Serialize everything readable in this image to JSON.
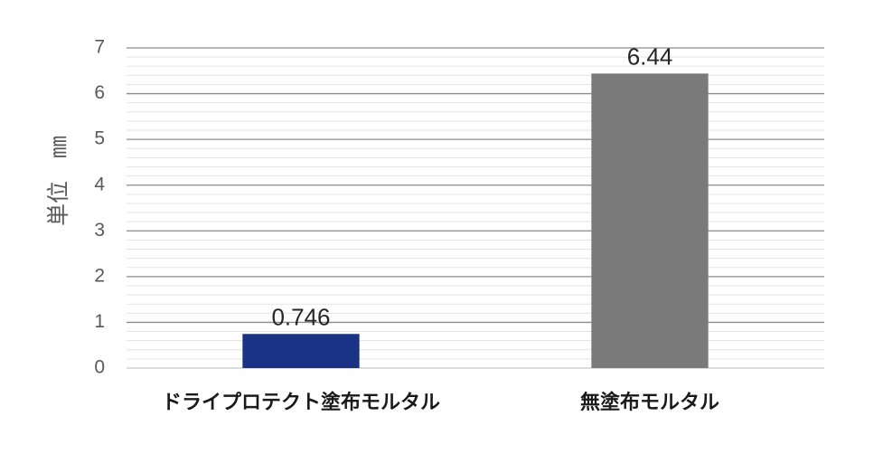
{
  "chart_data": {
    "type": "bar",
    "categories": [
      "ドライプロテクト塗布モルタル",
      "無塗布モルタル"
    ],
    "values": [
      0.746,
      6.44
    ],
    "value_labels": [
      "0.746",
      "6.44"
    ],
    "colors": [
      "#1b3384",
      "#7a7a7a"
    ],
    "ylabel": "単位　㎜",
    "ylim": [
      0,
      7
    ],
    "yticks": [
      0,
      1,
      2,
      3,
      4,
      5,
      6,
      7
    ],
    "grid": true,
    "grid_minor": true,
    "legend": "none"
  }
}
